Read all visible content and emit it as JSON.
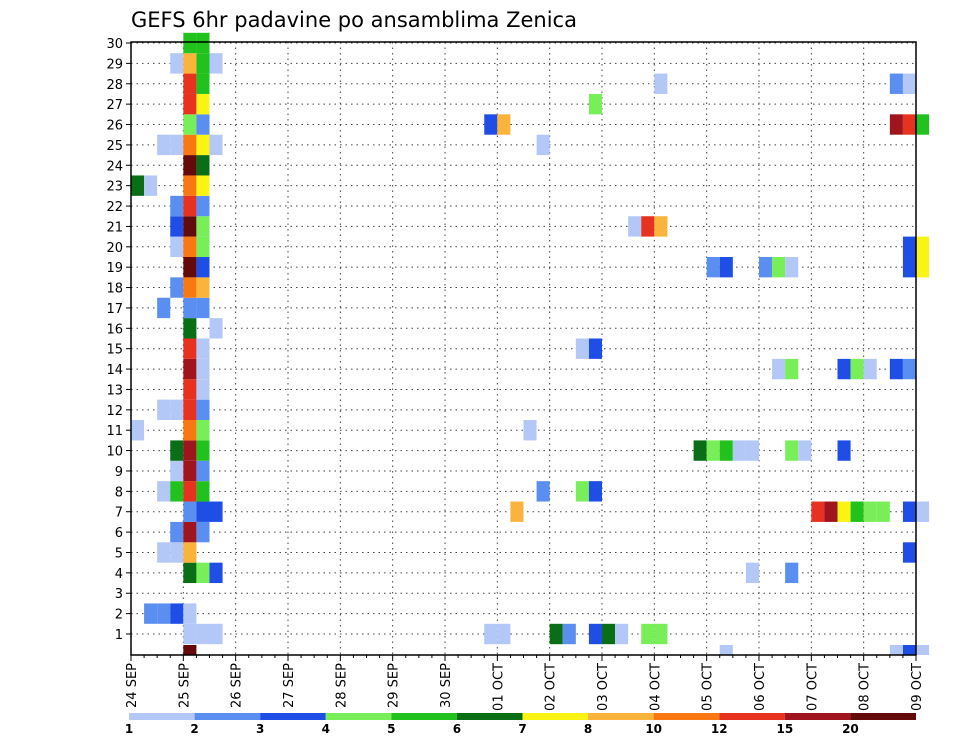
{
  "chart_data": {
    "type": "heatmap",
    "title": "GEFS 6hr padavine po ansamblima Zenica",
    "xlabel": "",
    "ylabel": "",
    "x_tick_labels": [
      "24 SEP",
      "25 SEP",
      "26 SEP",
      "27 SEP",
      "28 SEP",
      "29 SEP",
      "30 SEP",
      "01 OCT",
      "02 OCT",
      "03 OCT",
      "04 OCT",
      "05 OCT",
      "06 OCT",
      "07 OCT",
      "08 OCT",
      "09 OCT"
    ],
    "y_tick_labels": [
      "1",
      "2",
      "3",
      "4",
      "5",
      "6",
      "7",
      "8",
      "9",
      "10",
      "11",
      "12",
      "13",
      "14",
      "15",
      "16",
      "17",
      "18",
      "19",
      "20",
      "21",
      "22",
      "23",
      "24",
      "25",
      "26",
      "27",
      "28",
      "29",
      "30"
    ],
    "xlim_days": [
      0,
      15
    ],
    "ylim": [
      0,
      30
    ],
    "time_step_hours": 6,
    "grid": "dotted",
    "colorbar": {
      "labels": [
        "1",
        "2",
        "3",
        "4",
        "5",
        "6",
        "7",
        "8",
        "10",
        "12",
        "15",
        "20"
      ],
      "colors": [
        "#b4c8f8",
        "#5a8ef0",
        "#1e4ee6",
        "#78ee58",
        "#22c21e",
        "#0a6e16",
        "#faf414",
        "#fab43c",
        "#fa7812",
        "#e6321e",
        "#a0141e",
        "#640a0a"
      ]
    },
    "cells_format": "[member, day, hour_utc, color_class]",
    "cells": [
      [
        1,
        1,
        0,
        1
      ],
      [
        1,
        1,
        6,
        1
      ],
      [
        1,
        1,
        12,
        1
      ],
      [
        1,
        6,
        18,
        1
      ],
      [
        1,
        7,
        0,
        1
      ],
      [
        1,
        8,
        0,
        6
      ],
      [
        1,
        8,
        6,
        2
      ],
      [
        1,
        8,
        18,
        3
      ],
      [
        1,
        9,
        0,
        6
      ],
      [
        1,
        9,
        6,
        1
      ],
      [
        1,
        9,
        18,
        4
      ],
      [
        1,
        10,
        0,
        4
      ],
      [
        2,
        0,
        6,
        2
      ],
      [
        2,
        0,
        12,
        2
      ],
      [
        2,
        0,
        18,
        3
      ],
      [
        2,
        1,
        0,
        1
      ],
      [
        4,
        1,
        0,
        6
      ],
      [
        4,
        1,
        6,
        4
      ],
      [
        4,
        1,
        12,
        3
      ],
      [
        4,
        11,
        18,
        1
      ],
      [
        4,
        12,
        12,
        2
      ],
      [
        5,
        0,
        12,
        1
      ],
      [
        5,
        0,
        18,
        1
      ],
      [
        5,
        1,
        0,
        8
      ],
      [
        5,
        14,
        18,
        3
      ],
      [
        6,
        0,
        18,
        2
      ],
      [
        6,
        1,
        0,
        11
      ],
      [
        6,
        1,
        6,
        2
      ],
      [
        7,
        1,
        0,
        2
      ],
      [
        7,
        1,
        6,
        3
      ],
      [
        7,
        1,
        12,
        3
      ],
      [
        7,
        7,
        6,
        8
      ],
      [
        7,
        13,
        0,
        10
      ],
      [
        7,
        13,
        6,
        11
      ],
      [
        7,
        13,
        12,
        7
      ],
      [
        7,
        13,
        18,
        5
      ],
      [
        7,
        14,
        0,
        4
      ],
      [
        7,
        14,
        6,
        4
      ],
      [
        7,
        14,
        18,
        3
      ],
      [
        7,
        15,
        0,
        1
      ],
      [
        8,
        0,
        12,
        1
      ],
      [
        8,
        0,
        18,
        5
      ],
      [
        8,
        1,
        0,
        10
      ],
      [
        8,
        1,
        6,
        5
      ],
      [
        8,
        7,
        18,
        2
      ],
      [
        8,
        8,
        12,
        4
      ],
      [
        8,
        8,
        18,
        3
      ],
      [
        9,
        0,
        18,
        1
      ],
      [
        9,
        1,
        0,
        11
      ],
      [
        9,
        1,
        6,
        2
      ],
      [
        10,
        0,
        18,
        6
      ],
      [
        10,
        1,
        0,
        11
      ],
      [
        10,
        1,
        6,
        5
      ],
      [
        10,
        10,
        18,
        6
      ],
      [
        10,
        11,
        0,
        4
      ],
      [
        10,
        11,
        6,
        5
      ],
      [
        10,
        11,
        12,
        1
      ],
      [
        10,
        11,
        18,
        1
      ],
      [
        10,
        12,
        12,
        4
      ],
      [
        10,
        12,
        18,
        1
      ],
      [
        10,
        13,
        12,
        3
      ],
      [
        11,
        0,
        0,
        1
      ],
      [
        11,
        1,
        0,
        9
      ],
      [
        11,
        1,
        6,
        4
      ],
      [
        11,
        7,
        12,
        1
      ],
      [
        12,
        0,
        12,
        1
      ],
      [
        12,
        0,
        18,
        1
      ],
      [
        12,
        1,
        0,
        10
      ],
      [
        12,
        1,
        6,
        2
      ],
      [
        13,
        1,
        0,
        10
      ],
      [
        13,
        1,
        6,
        1
      ],
      [
        14,
        1,
        0,
        11
      ],
      [
        14,
        1,
        6,
        1
      ],
      [
        14,
        12,
        6,
        1
      ],
      [
        14,
        12,
        12,
        4
      ],
      [
        14,
        13,
        12,
        3
      ],
      [
        14,
        13,
        18,
        4
      ],
      [
        14,
        14,
        0,
        1
      ],
      [
        14,
        14,
        12,
        3
      ],
      [
        14,
        14,
        18,
        2
      ],
      [
        15,
        1,
        0,
        10
      ],
      [
        15,
        1,
        6,
        1
      ],
      [
        15,
        8,
        12,
        1
      ],
      [
        15,
        8,
        18,
        3
      ],
      [
        16,
        1,
        0,
        6
      ],
      [
        16,
        1,
        12,
        1
      ],
      [
        17,
        0,
        12,
        2
      ],
      [
        17,
        1,
        0,
        2
      ],
      [
        17,
        1,
        6,
        2
      ],
      [
        18,
        0,
        18,
        2
      ],
      [
        18,
        1,
        0,
        9
      ],
      [
        18,
        1,
        6,
        8
      ],
      [
        19,
        1,
        0,
        12
      ],
      [
        19,
        1,
        6,
        3
      ],
      [
        19,
        11,
        0,
        2
      ],
      [
        19,
        11,
        6,
        3
      ],
      [
        19,
        12,
        0,
        2
      ],
      [
        19,
        12,
        6,
        4
      ],
      [
        19,
        12,
        12,
        1
      ],
      [
        19,
        14,
        18,
        3
      ],
      [
        19,
        15,
        0,
        7
      ],
      [
        20,
        0,
        18,
        1
      ],
      [
        20,
        1,
        0,
        9
      ],
      [
        20,
        1,
        6,
        4
      ],
      [
        20,
        14,
        18,
        3
      ],
      [
        20,
        15,
        0,
        7
      ],
      [
        21,
        0,
        18,
        3
      ],
      [
        21,
        1,
        0,
        12
      ],
      [
        21,
        1,
        6,
        4
      ],
      [
        21,
        9,
        12,
        1
      ],
      [
        21,
        9,
        18,
        10
      ],
      [
        21,
        10,
        0,
        8
      ],
      [
        22,
        0,
        18,
        2
      ],
      [
        22,
        1,
        0,
        10
      ],
      [
        22,
        1,
        6,
        2
      ],
      [
        23,
        0,
        0,
        6
      ],
      [
        23,
        0,
        6,
        1
      ],
      [
        23,
        1,
        0,
        9
      ],
      [
        23,
        1,
        6,
        7
      ],
      [
        24,
        1,
        0,
        12
      ],
      [
        24,
        1,
        6,
        6
      ],
      [
        25,
        0,
        12,
        1
      ],
      [
        25,
        0,
        18,
        1
      ],
      [
        25,
        1,
        0,
        9
      ],
      [
        25,
        1,
        6,
        7
      ],
      [
        25,
        1,
        12,
        1
      ],
      [
        25,
        7,
        18,
        1
      ],
      [
        26,
        1,
        0,
        4
      ],
      [
        26,
        1,
        6,
        2
      ],
      [
        26,
        6,
        18,
        3
      ],
      [
        26,
        7,
        0,
        8
      ],
      [
        26,
        14,
        12,
        11
      ],
      [
        26,
        14,
        18,
        10
      ],
      [
        26,
        15,
        0,
        5
      ],
      [
        27,
        1,
        0,
        10
      ],
      [
        27,
        1,
        6,
        7
      ],
      [
        27,
        8,
        18,
        4
      ],
      [
        28,
        1,
        0,
        10
      ],
      [
        28,
        1,
        6,
        5
      ],
      [
        28,
        10,
        0,
        1
      ],
      [
        28,
        14,
        12,
        2
      ],
      [
        28,
        14,
        18,
        1
      ],
      [
        29,
        0,
        18,
        1
      ],
      [
        29,
        1,
        0,
        8
      ],
      [
        29,
        1,
        6,
        5
      ],
      [
        29,
        1,
        12,
        1
      ],
      [
        30,
        1,
        0,
        5
      ],
      [
        30,
        1,
        6,
        5
      ]
    ],
    "bottom_row": [
      [
        1,
        0,
        12
      ],
      [
        11,
        6,
        1
      ],
      [
        14,
        12,
        1
      ],
      [
        14,
        18,
        3
      ],
      [
        15,
        0,
        1
      ]
    ]
  }
}
